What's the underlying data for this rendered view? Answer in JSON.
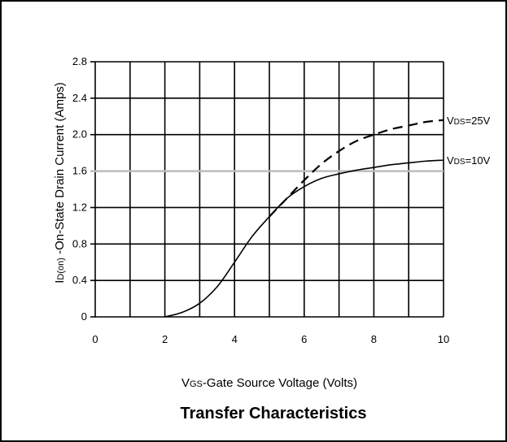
{
  "chart_data": {
    "type": "line",
    "title": "Transfer Characteristics",
    "xlabel": {
      "sub": "GS",
      "main": "-Gate Source Voltage (Volts)",
      "prefix": "V"
    },
    "ylabel": {
      "prefix": "I",
      "sub": "D(on)",
      "main": " -On-State Drain Current (Amps)"
    },
    "xlim": [
      0,
      10
    ],
    "ylim": [
      0,
      2.8
    ],
    "x_ticks": [
      0,
      2,
      4,
      6,
      8,
      10
    ],
    "x_tick_labels": [
      "0",
      "2",
      "4",
      "6",
      "8",
      "10"
    ],
    "y_ticks": [
      0,
      0.4,
      0.8,
      1.2,
      1.6,
      2.0,
      2.4,
      2.8
    ],
    "y_tick_labels": [
      "0",
      "0.4",
      "0.8",
      "1.2",
      "1.6",
      "2.0",
      "2.4",
      "2.8"
    ],
    "grid": true,
    "reference_line": {
      "y": 1.6,
      "color": "#bdbdbd"
    },
    "series": [
      {
        "name": "VDS=10V",
        "label_prefix": "V",
        "label_sub": "DS",
        "label_main": "=10V",
        "style": "solid",
        "x": [
          2.0,
          2.5,
          3.0,
          3.5,
          4.0,
          4.5,
          5.0,
          5.5,
          6.0,
          6.5,
          7.0,
          7.5,
          8.0,
          8.5,
          9.0,
          9.5,
          10.0
        ],
        "y": [
          0.0,
          0.05,
          0.15,
          0.33,
          0.6,
          0.88,
          1.1,
          1.3,
          1.43,
          1.52,
          1.57,
          1.61,
          1.64,
          1.67,
          1.69,
          1.71,
          1.72
        ]
      },
      {
        "name": "VDS=25V",
        "label_prefix": "V",
        "label_sub": "DS",
        "label_main": "=25V",
        "style": "dashed",
        "x": [
          5.0,
          5.5,
          6.0,
          6.5,
          7.0,
          7.5,
          8.0,
          8.5,
          9.0,
          9.5,
          10.0
        ],
        "y": [
          1.1,
          1.3,
          1.5,
          1.68,
          1.82,
          1.93,
          2.0,
          2.06,
          2.1,
          2.14,
          2.16
        ]
      }
    ]
  }
}
